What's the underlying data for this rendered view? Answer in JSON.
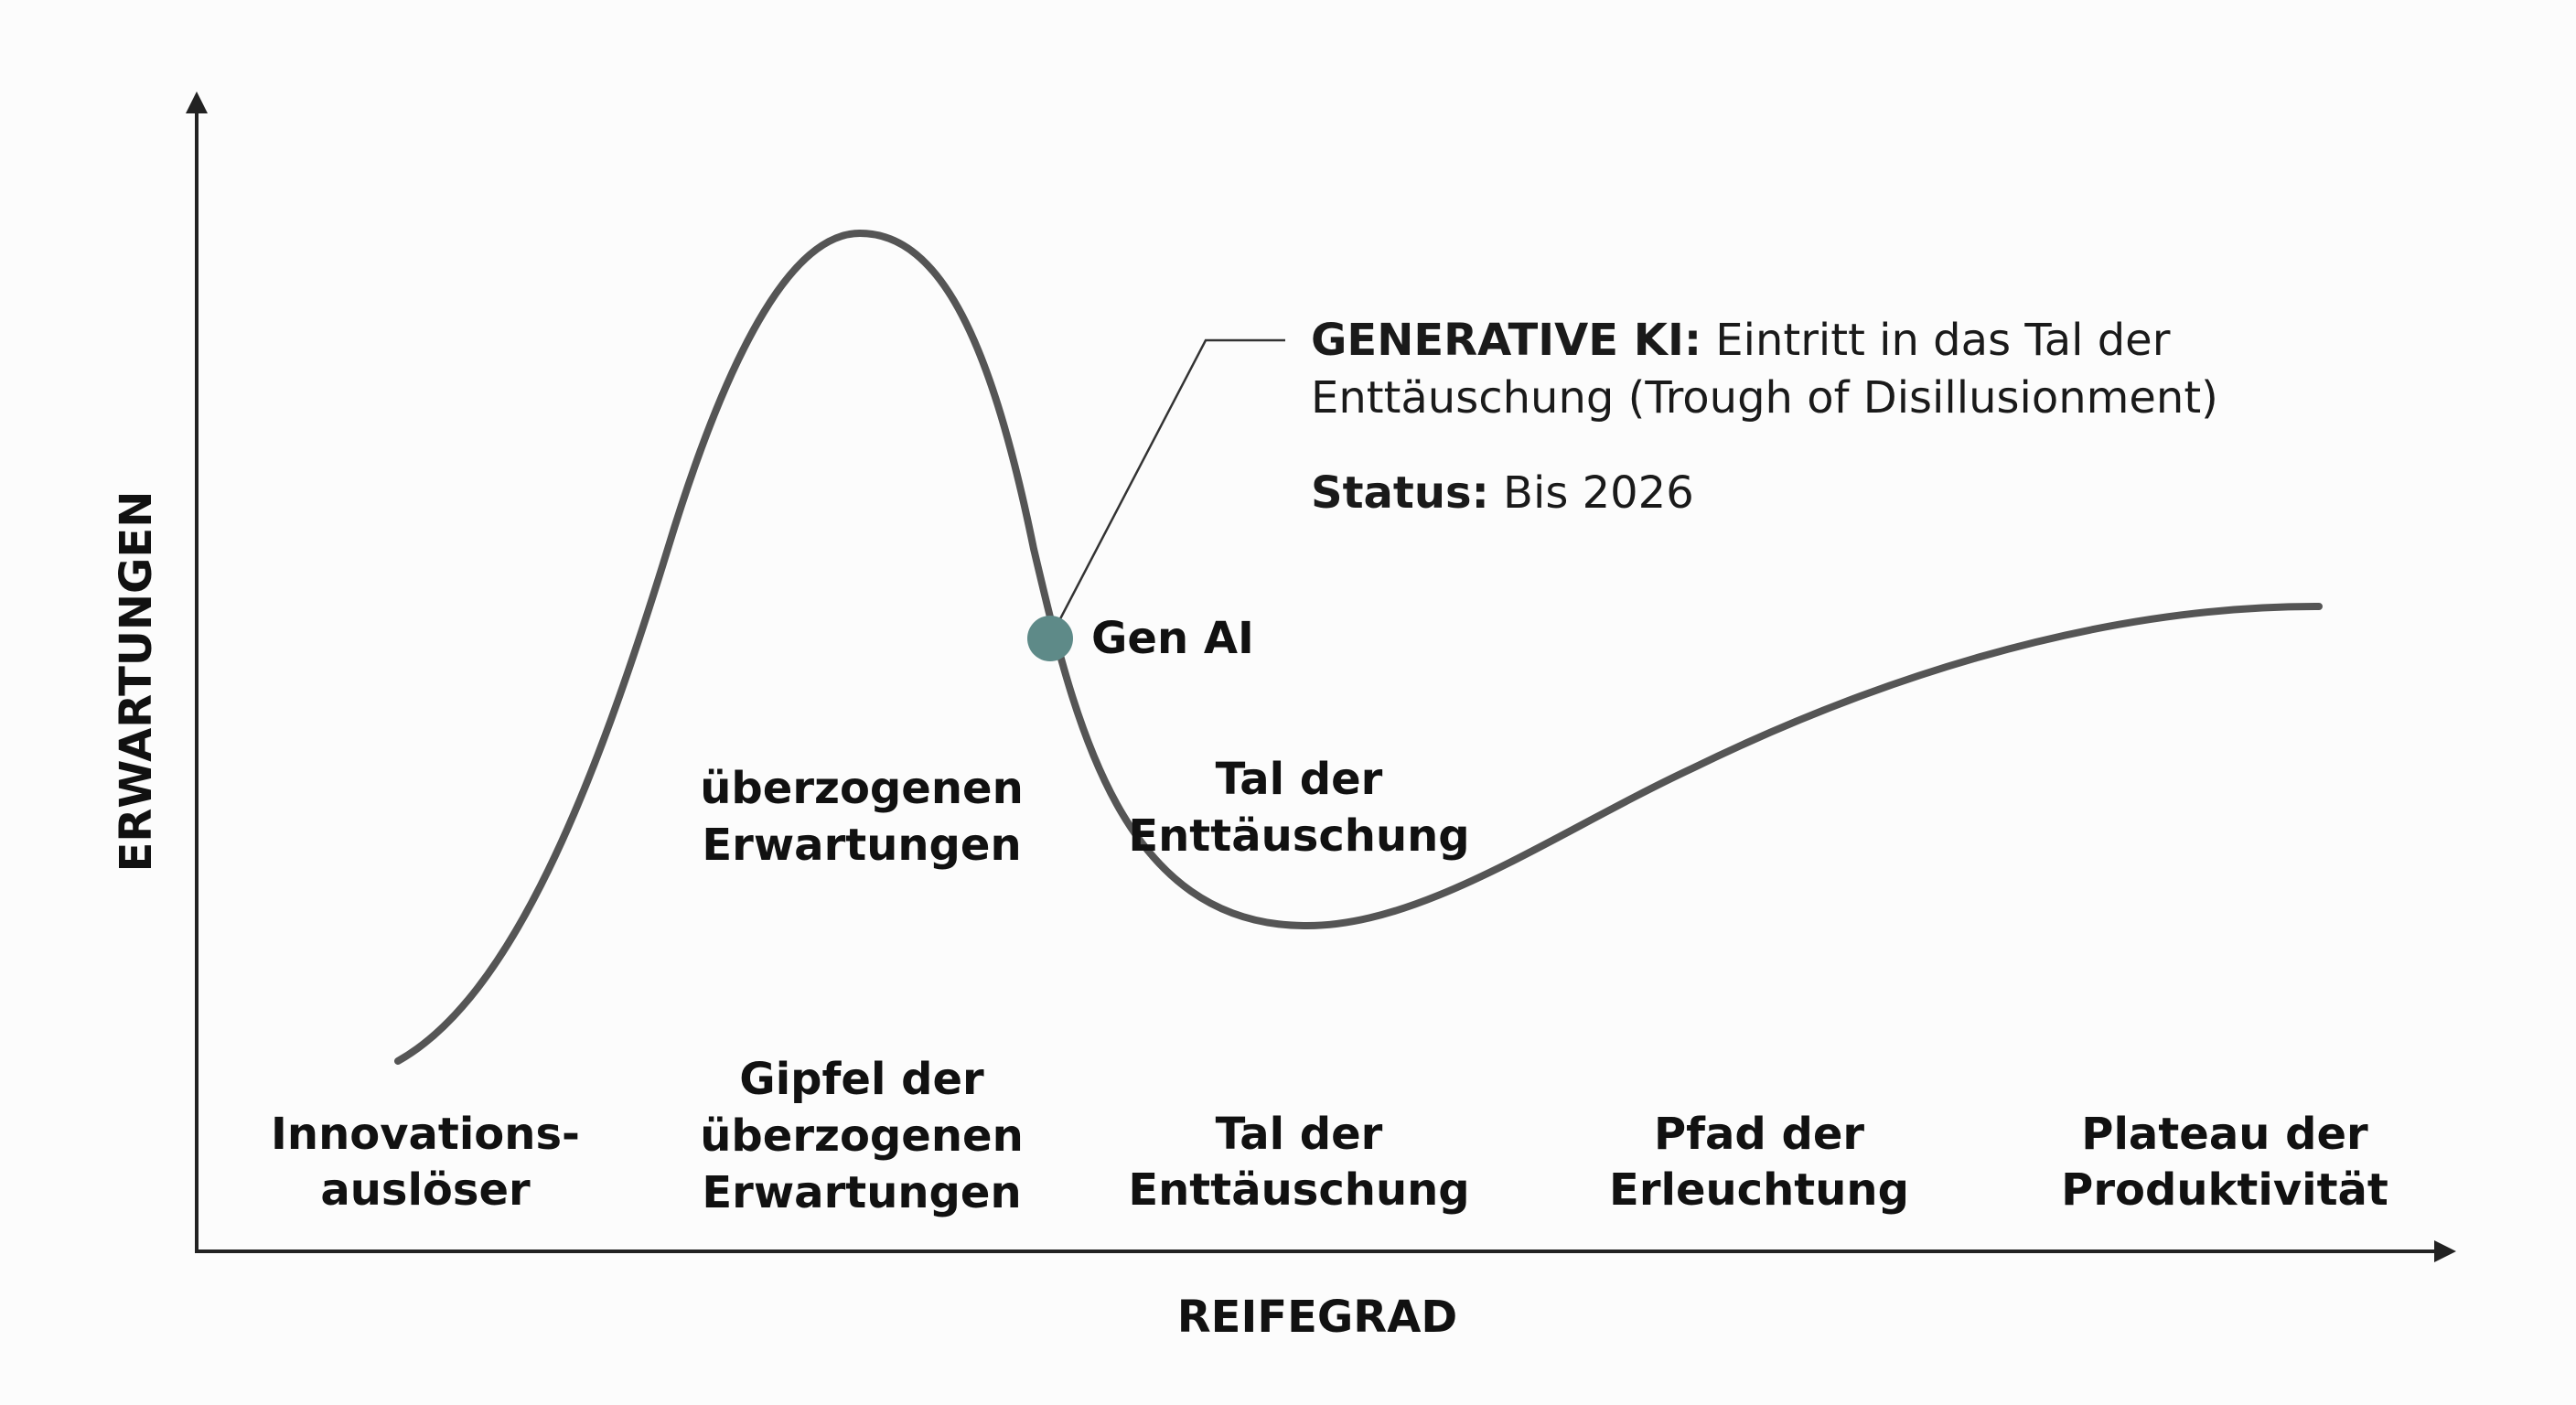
{
  "axes": {
    "y_label": "ERWARTUNGEN",
    "x_label": "REIFEGRAD"
  },
  "curve": {
    "description_points": "hype cycle curve",
    "stroke_color": "#555555"
  },
  "phases": [
    {
      "line1": "Innovations-",
      "line2": "auslöser"
    },
    {
      "line1": "Gipfel der",
      "line2": "überzogenen",
      "line3": "Erwartungen"
    },
    {
      "line1": "Tal der",
      "line2": "Enttäuschung"
    },
    {
      "line1": "Pfad der",
      "line2": "Erleuchtung"
    },
    {
      "line1": "Plateau der",
      "line2": "Produktivität"
    }
  ],
  "inline_labels": {
    "peak": {
      "line1": "überzogenen",
      "line2": "Erwartungen"
    },
    "trough": {
      "line1": "Tal der",
      "line2": "Enttäuschung"
    }
  },
  "marker": {
    "label": "Gen AI",
    "color": "#5e8a88"
  },
  "annotation": {
    "title_bold": "GENERATIVE KI:",
    "title_rest": " Eintritt in das Tal der",
    "line2": "Enttäuschung (Trough of Disillusionment)",
    "status_bold": "Status:",
    "status_rest": " Bis 2026"
  }
}
